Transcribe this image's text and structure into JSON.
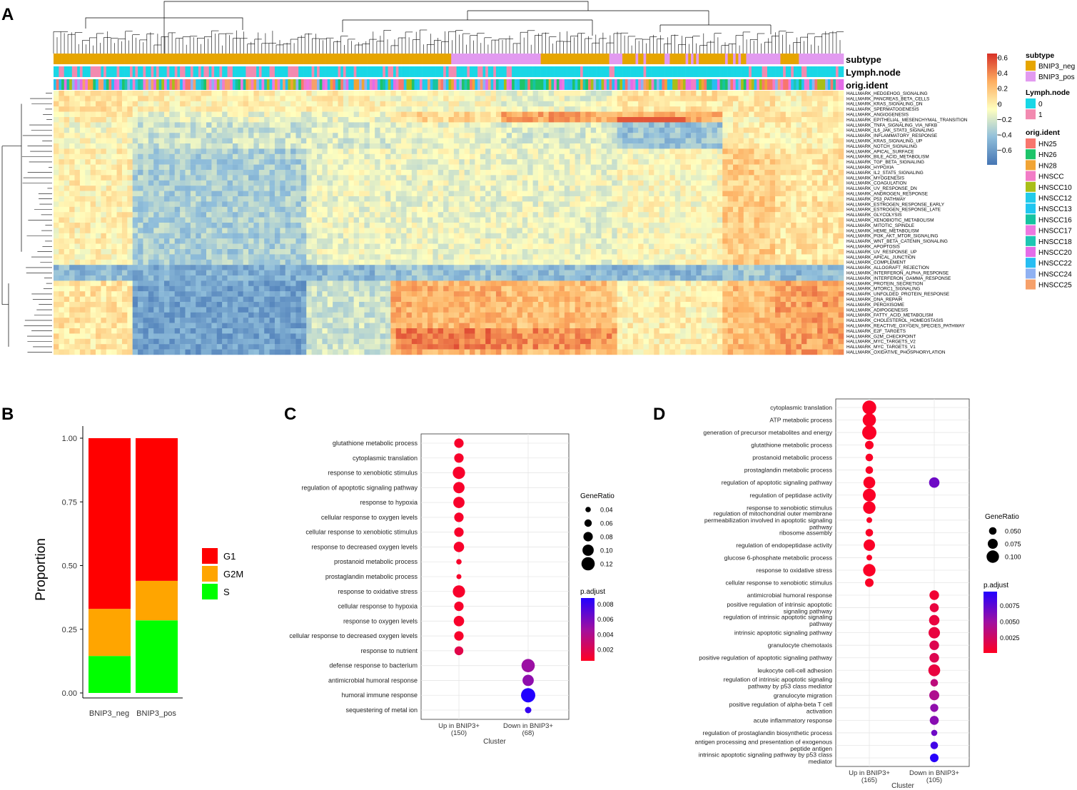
{
  "panels": {
    "a": "A",
    "b": "B",
    "c": "C",
    "d": "D"
  },
  "colors": {
    "BNIP3_neg": "#E6A500",
    "BNIP3_pos": "#E29AF0",
    "lymph_0": "#19D7E6",
    "lymph_1": "#F28AB0",
    "G1": "#FF0000",
    "G2M": "#FFA500",
    "S": "#00FF00",
    "padj_low": "#FF0022",
    "padj_high": "#2200FF"
  },
  "heatmap": {
    "annotation_rows": [
      "subtype",
      "Lymph.node",
      "orig.ident"
    ],
    "pathways": [
      "HALLMARK_HEDGEHOG_SIGNALING",
      "HALLMARK_PANCREAS_BETA_CELLS",
      "HALLMARK_KRAS_SIGNALING_DN",
      "HALLMARK_SPERMATOGENESIS",
      "HALLMARK_ANGIOGENESIS",
      "HALLMARK_EPITHELIAL_MESENCHYMAL_TRANSITION",
      "HALLMARK_TNFA_SIGNALING_VIA_NFKB",
      "HALLMARK_IL6_JAK_STAT3_SIGNALING",
      "HALLMARK_INFLAMMATORY_RESPONSE",
      "HALLMARK_KRAS_SIGNALING_UP",
      "HALLMARK_NOTCH_SIGNALING",
      "HALLMARK_APICAL_SURFACE",
      "HALLMARK_BILE_ACID_METABOLISM",
      "HALLMARK_TGF_BETA_SIGNALING",
      "HALLMARK_HYPOXIA",
      "HALLMARK_IL2_STAT5_SIGNALING",
      "HALLMARK_MYOGENESIS",
      "HALLMARK_COAGULATION",
      "HALLMARK_UV_RESPONSE_DN",
      "HALLMARK_ANDROGEN_RESPONSE",
      "HALLMARK_P53_PATHWAY",
      "HALLMARK_ESTROGEN_RESPONSE_EARLY",
      "HALLMARK_ESTROGEN_RESPONSE_LATE",
      "HALLMARK_GLYCOLYSIS",
      "HALLMARK_XENOBIOTIC_METABOLISM",
      "HALLMARK_MITOTIC_SPINDLE",
      "HALLMARK_HEME_METABOLISM",
      "HALLMARK_PI3K_AKT_MTOR_SIGNALING",
      "HALLMARK_WNT_BETA_CATENIN_SIGNALING",
      "HALLMARK_APOPTOSIS",
      "HALLMARK_UV_RESPONSE_UP",
      "HALLMARK_APICAL_JUNCTION",
      "HALLMARK_COMPLEMENT",
      "HALLMARK_ALLOGRAFT_REJECTION",
      "HALLMARK_INTERFERON_ALPHA_RESPONSE",
      "HALLMARK_INTERFERON_GAMMA_RESPONSE",
      "HALLMARK_PROTEIN_SECRETION",
      "HALLMARK_MTORC1_SIGNALING",
      "HALLMARK_UNFOLDED_PROTEIN_RESPONSE",
      "HALLMARK_DNA_REPAIR",
      "HALLMARK_PEROXISOME",
      "HALLMARK_ADIPOGENESIS",
      "HALLMARK_FATTY_ACID_METABOLISM",
      "HALLMARK_CHOLESTEROL_HOMEOSTASIS",
      "HALLMARK_REACTIVE_OXYGEN_SPECIES_PATHWAY",
      "HALLMARK_E2F_TARGETS",
      "HALLMARK_G2M_CHECKPOINT",
      "HALLMARK_MYC_TARGETS_V2",
      "HALLMARK_MYC_TARGETS_V1",
      "HALLMARK_OXIDATIVE_PHOSPHORYLATION"
    ],
    "colorbar_ticks": [
      "0.6",
      "0.4",
      "0.2",
      "0",
      "−0.2",
      "−0.4",
      "−0.6"
    ],
    "legend": {
      "subtype_title": "subtype",
      "subtype_items": [
        {
          "label": "BNIP3_neg",
          "color": "#E6A500"
        },
        {
          "label": "BNIP3_pos",
          "color": "#E29AF0"
        }
      ],
      "lymph_title": "Lymph.node",
      "lymph_items": [
        {
          "label": "0",
          "color": "#19D7E6"
        },
        {
          "label": "1",
          "color": "#F28AB0"
        }
      ],
      "orig_title": "orig.ident",
      "orig_items": [
        {
          "label": "HN25",
          "color": "#F8766D"
        },
        {
          "label": "HN26",
          "color": "#1EC46A"
        },
        {
          "label": "HN28",
          "color": "#F1A435"
        },
        {
          "label": "HNSCC",
          "color": "#F27CC6"
        },
        {
          "label": "HNSCC10",
          "color": "#A9BE18"
        },
        {
          "label": "HNSCC12",
          "color": "#22CBEA"
        },
        {
          "label": "HNSCC13",
          "color": "#20C6F0"
        },
        {
          "label": "HNSCC16",
          "color": "#16C3A0"
        },
        {
          "label": "HNSCC17",
          "color": "#EE78E0"
        },
        {
          "label": "HNSCC18",
          "color": "#1FC6B3"
        },
        {
          "label": "HNSCC20",
          "color": "#E46CE8"
        },
        {
          "label": "HNSCC22",
          "color": "#27BDF2"
        },
        {
          "label": "HNSCC24",
          "color": "#8FB1F2"
        },
        {
          "label": "HNSCC25",
          "color": "#F6A06A"
        }
      ]
    }
  },
  "chart_data": [
    {
      "panel": "B",
      "type": "bar",
      "stacked": true,
      "categories": [
        "BNIP3_neg",
        "BNIP3_pos"
      ],
      "series": [
        {
          "name": "S",
          "values": [
            0.145,
            0.285
          ]
        },
        {
          "name": "G2M",
          "values": [
            0.185,
            0.155
          ]
        },
        {
          "name": "G1",
          "values": [
            0.67,
            0.56
          ]
        }
      ],
      "legend_order": [
        "G1",
        "G2M",
        "S"
      ],
      "ylabel": "Proportion",
      "ylim": [
        0,
        1
      ],
      "yticks": [
        "0.00",
        "0.25",
        "0.50",
        "0.75",
        "1.00"
      ]
    },
    {
      "panel": "C",
      "type": "scatter",
      "title": "",
      "xlabel": "Cluster",
      "clusters": [
        "Up in BNIP3+\n(150)",
        "Down in BNIP3+\n(68)"
      ],
      "terms": [
        "glutathione metabolic process",
        "cytoplasmic translation",
        "response to xenobiotic stimulus",
        "regulation of apoptotic signaling pathway",
        "response to hypoxia",
        "cellular response to oxygen levels",
        "cellular response to xenobiotic stimulus",
        "response to decreased oxygen levels",
        "prostanoid metabolic process",
        "prostaglandin metabolic process",
        "response to oxidative stress",
        "cellular response to hypoxia",
        "response to oxygen levels",
        "cellular response to decreased oxygen levels",
        "response to nutrient",
        "defense response to bacterium",
        "antimicrobial humoral response",
        "humoral immune response",
        "sequestering of metal ion"
      ],
      "points": [
        {
          "term": 0,
          "cluster": 0,
          "gene_ratio": 0.08,
          "p_adjust": 0.0008
        },
        {
          "term": 1,
          "cluster": 0,
          "gene_ratio": 0.08,
          "p_adjust": 0.0008
        },
        {
          "term": 2,
          "cluster": 0,
          "gene_ratio": 0.11,
          "p_adjust": 0.0008
        },
        {
          "term": 3,
          "cluster": 0,
          "gene_ratio": 0.1,
          "p_adjust": 0.0008
        },
        {
          "term": 4,
          "cluster": 0,
          "gene_ratio": 0.1,
          "p_adjust": 0.0008
        },
        {
          "term": 5,
          "cluster": 0,
          "gene_ratio": 0.08,
          "p_adjust": 0.0008
        },
        {
          "term": 6,
          "cluster": 0,
          "gene_ratio": 0.08,
          "p_adjust": 0.0008
        },
        {
          "term": 7,
          "cluster": 0,
          "gene_ratio": 0.09,
          "p_adjust": 0.0008
        },
        {
          "term": 8,
          "cluster": 0,
          "gene_ratio": 0.04,
          "p_adjust": 0.0008
        },
        {
          "term": 9,
          "cluster": 0,
          "gene_ratio": 0.035,
          "p_adjust": 0.0008
        },
        {
          "term": 10,
          "cluster": 0,
          "gene_ratio": 0.11,
          "p_adjust": 0.0008
        },
        {
          "term": 11,
          "cluster": 0,
          "gene_ratio": 0.08,
          "p_adjust": 0.0008
        },
        {
          "term": 12,
          "cluster": 0,
          "gene_ratio": 0.09,
          "p_adjust": 0.0008
        },
        {
          "term": 13,
          "cluster": 0,
          "gene_ratio": 0.08,
          "p_adjust": 0.0008
        },
        {
          "term": 14,
          "cluster": 0,
          "gene_ratio": 0.075,
          "p_adjust": 0.0018
        },
        {
          "term": 15,
          "cluster": 1,
          "gene_ratio": 0.12,
          "p_adjust": 0.0048
        },
        {
          "term": 16,
          "cluster": 1,
          "gene_ratio": 0.1,
          "p_adjust": 0.0052
        },
        {
          "term": 17,
          "cluster": 1,
          "gene_ratio": 0.13,
          "p_adjust": 0.0088
        },
        {
          "term": 18,
          "cluster": 1,
          "gene_ratio": 0.05,
          "p_adjust": 0.0082
        }
      ],
      "size_legend": {
        "title": "GeneRatio",
        "values": [
          0.04,
          0.06,
          0.08,
          0.1,
          0.12
        ],
        "labels": [
          "0.04",
          "0.06",
          "0.08",
          "0.10",
          "0.12"
        ]
      },
      "color_legend": {
        "title": "p.adjust",
        "range": [
          0.0005,
          0.0088
        ],
        "ticks": [
          0.008,
          0.006,
          0.004,
          0.002
        ],
        "labels": [
          "0.008",
          "0.006",
          "0.004",
          "0.002"
        ]
      }
    },
    {
      "panel": "D",
      "type": "scatter",
      "title": "",
      "xlabel": "Cluster",
      "clusters": [
        "Up in BNIP3+\n(165)",
        "Down in BNIP3+\n(105)"
      ],
      "terms": [
        "cytoplasmic translation",
        "ATP metabolic process",
        "generation of precursor metabolites and energy",
        "glutathione metabolic process",
        "prostanoid metabolic process",
        "prostaglandin metabolic process",
        "regulation of apoptotic signaling pathway",
        "regulation of peptidase activity",
        "response to xenobiotic stimulus",
        "regulation of mitochondrial outer membrane\npermeabilization involved in apoptotic signaling\npathway",
        "ribosome assembly",
        "regulation of endopeptidase activity",
        "glucose 6-phosphate metabolic process",
        "response to oxidative stress",
        "cellular response to xenobiotic stimulus",
        "antimicrobial humoral response",
        "positive regulation of intrinsic apoptotic\nsignaling pathway",
        "regulation of intrinsic apoptotic signaling\npathway",
        "intrinsic apoptotic signaling pathway",
        "granulocyte chemotaxis",
        "positive regulation of apoptotic signaling pathway",
        "leukocyte cell-cell adhesion",
        "regulation of intrinsic apoptotic signaling\npathway by p53 class mediator",
        "granulocyte migration",
        "positive regulation of alpha-beta T cell\nactivation",
        "acute inflammatory response",
        "regulation of prostaglandin biosynthetic process",
        "antigen processing and presentation of exogenous\npeptide antigen",
        "intrinsic apoptotic signaling pathway by p53 class\nmediator"
      ],
      "points": [
        {
          "term": 0,
          "cluster": 0,
          "gene_ratio": 0.115,
          "p_adjust": 0.0003
        },
        {
          "term": 1,
          "cluster": 0,
          "gene_ratio": 0.11,
          "p_adjust": 0.0003
        },
        {
          "term": 2,
          "cluster": 0,
          "gene_ratio": 0.12,
          "p_adjust": 0.0003
        },
        {
          "term": 3,
          "cluster": 0,
          "gene_ratio": 0.06,
          "p_adjust": 0.0003
        },
        {
          "term": 4,
          "cluster": 0,
          "gene_ratio": 0.05,
          "p_adjust": 0.0003
        },
        {
          "term": 5,
          "cluster": 0,
          "gene_ratio": 0.05,
          "p_adjust": 0.0003
        },
        {
          "term": 6,
          "cluster": 0,
          "gene_ratio": 0.095,
          "p_adjust": 0.0003
        },
        {
          "term": 7,
          "cluster": 0,
          "gene_ratio": 0.105,
          "p_adjust": 0.0003
        },
        {
          "term": 8,
          "cluster": 0,
          "gene_ratio": 0.1,
          "p_adjust": 0.0003
        },
        {
          "term": 9,
          "cluster": 0,
          "gene_ratio": 0.03,
          "p_adjust": 0.0003
        },
        {
          "term": 10,
          "cluster": 0,
          "gene_ratio": 0.05,
          "p_adjust": 0.0003
        },
        {
          "term": 11,
          "cluster": 0,
          "gene_ratio": 0.09,
          "p_adjust": 0.0003
        },
        {
          "term": 12,
          "cluster": 0,
          "gene_ratio": 0.03,
          "p_adjust": 0.0003
        },
        {
          "term": 13,
          "cluster": 0,
          "gene_ratio": 0.1,
          "p_adjust": 0.0003
        },
        {
          "term": 14,
          "cluster": 0,
          "gene_ratio": 0.06,
          "p_adjust": 0.0003
        },
        {
          "term": 6,
          "cluster": 1,
          "gene_ratio": 0.08,
          "p_adjust": 0.0068
        },
        {
          "term": 15,
          "cluster": 1,
          "gene_ratio": 0.07,
          "p_adjust": 0.0008
        },
        {
          "term": 16,
          "cluster": 1,
          "gene_ratio": 0.065,
          "p_adjust": 0.0012
        },
        {
          "term": 17,
          "cluster": 1,
          "gene_ratio": 0.08,
          "p_adjust": 0.0012
        },
        {
          "term": 18,
          "cluster": 1,
          "gene_ratio": 0.09,
          "p_adjust": 0.0012
        },
        {
          "term": 19,
          "cluster": 1,
          "gene_ratio": 0.07,
          "p_adjust": 0.0018
        },
        {
          "term": 20,
          "cluster": 1,
          "gene_ratio": 0.07,
          "p_adjust": 0.0018
        },
        {
          "term": 21,
          "cluster": 1,
          "gene_ratio": 0.095,
          "p_adjust": 0.0012
        },
        {
          "term": 22,
          "cluster": 1,
          "gene_ratio": 0.05,
          "p_adjust": 0.0035
        },
        {
          "term": 23,
          "cluster": 1,
          "gene_ratio": 0.075,
          "p_adjust": 0.0042
        },
        {
          "term": 24,
          "cluster": 1,
          "gene_ratio": 0.055,
          "p_adjust": 0.0055
        },
        {
          "term": 25,
          "cluster": 1,
          "gene_ratio": 0.065,
          "p_adjust": 0.0058
        },
        {
          "term": 26,
          "cluster": 1,
          "gene_ratio": 0.035,
          "p_adjust": 0.0068
        },
        {
          "term": 27,
          "cluster": 1,
          "gene_ratio": 0.05,
          "p_adjust": 0.0085
        },
        {
          "term": 28,
          "cluster": 1,
          "gene_ratio": 0.06,
          "p_adjust": 0.0095
        }
      ],
      "size_legend": {
        "title": "GeneRatio",
        "values": [
          0.05,
          0.075,
          0.1
        ],
        "labels": [
          "0.050",
          "0.075",
          "0.100"
        ]
      },
      "color_legend": {
        "title": "p.adjust",
        "range": [
          0.0001,
          0.0097
        ],
        "ticks": [
          0.0075,
          0.005,
          0.0025
        ],
        "labels": [
          "0.0075",
          "0.0050",
          "0.0025"
        ]
      }
    }
  ]
}
